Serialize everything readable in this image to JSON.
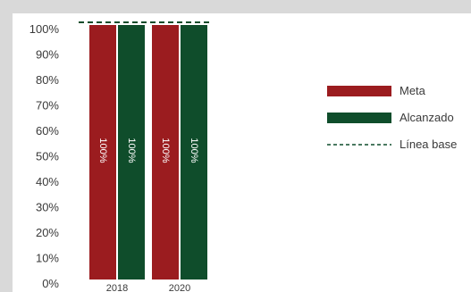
{
  "chart_data": {
    "type": "bar",
    "categories": [
      "2018",
      "2020"
    ],
    "series": [
      {
        "name": "Meta",
        "values": [
          100,
          100
        ],
        "color": "#9b1c1f",
        "value_labels": [
          "100%",
          "100%"
        ]
      },
      {
        "name": "Alcanzado",
        "values": [
          100,
          100
        ],
        "color": "#0f4d2b",
        "value_labels": [
          "100%",
          "100%"
        ]
      }
    ],
    "baseline": {
      "name": "Línea base",
      "value": 100,
      "color": "#0f4d2b",
      "style": "dashed"
    },
    "ylim": [
      0,
      100
    ],
    "yticks": [
      "0%",
      "10%",
      "20%",
      "30%",
      "40%",
      "50%",
      "60%",
      "70%",
      "80%",
      "90%",
      "100%"
    ],
    "grid": false,
    "legend_position": "right",
    "title": "",
    "xlabel": "",
    "ylabel": ""
  }
}
